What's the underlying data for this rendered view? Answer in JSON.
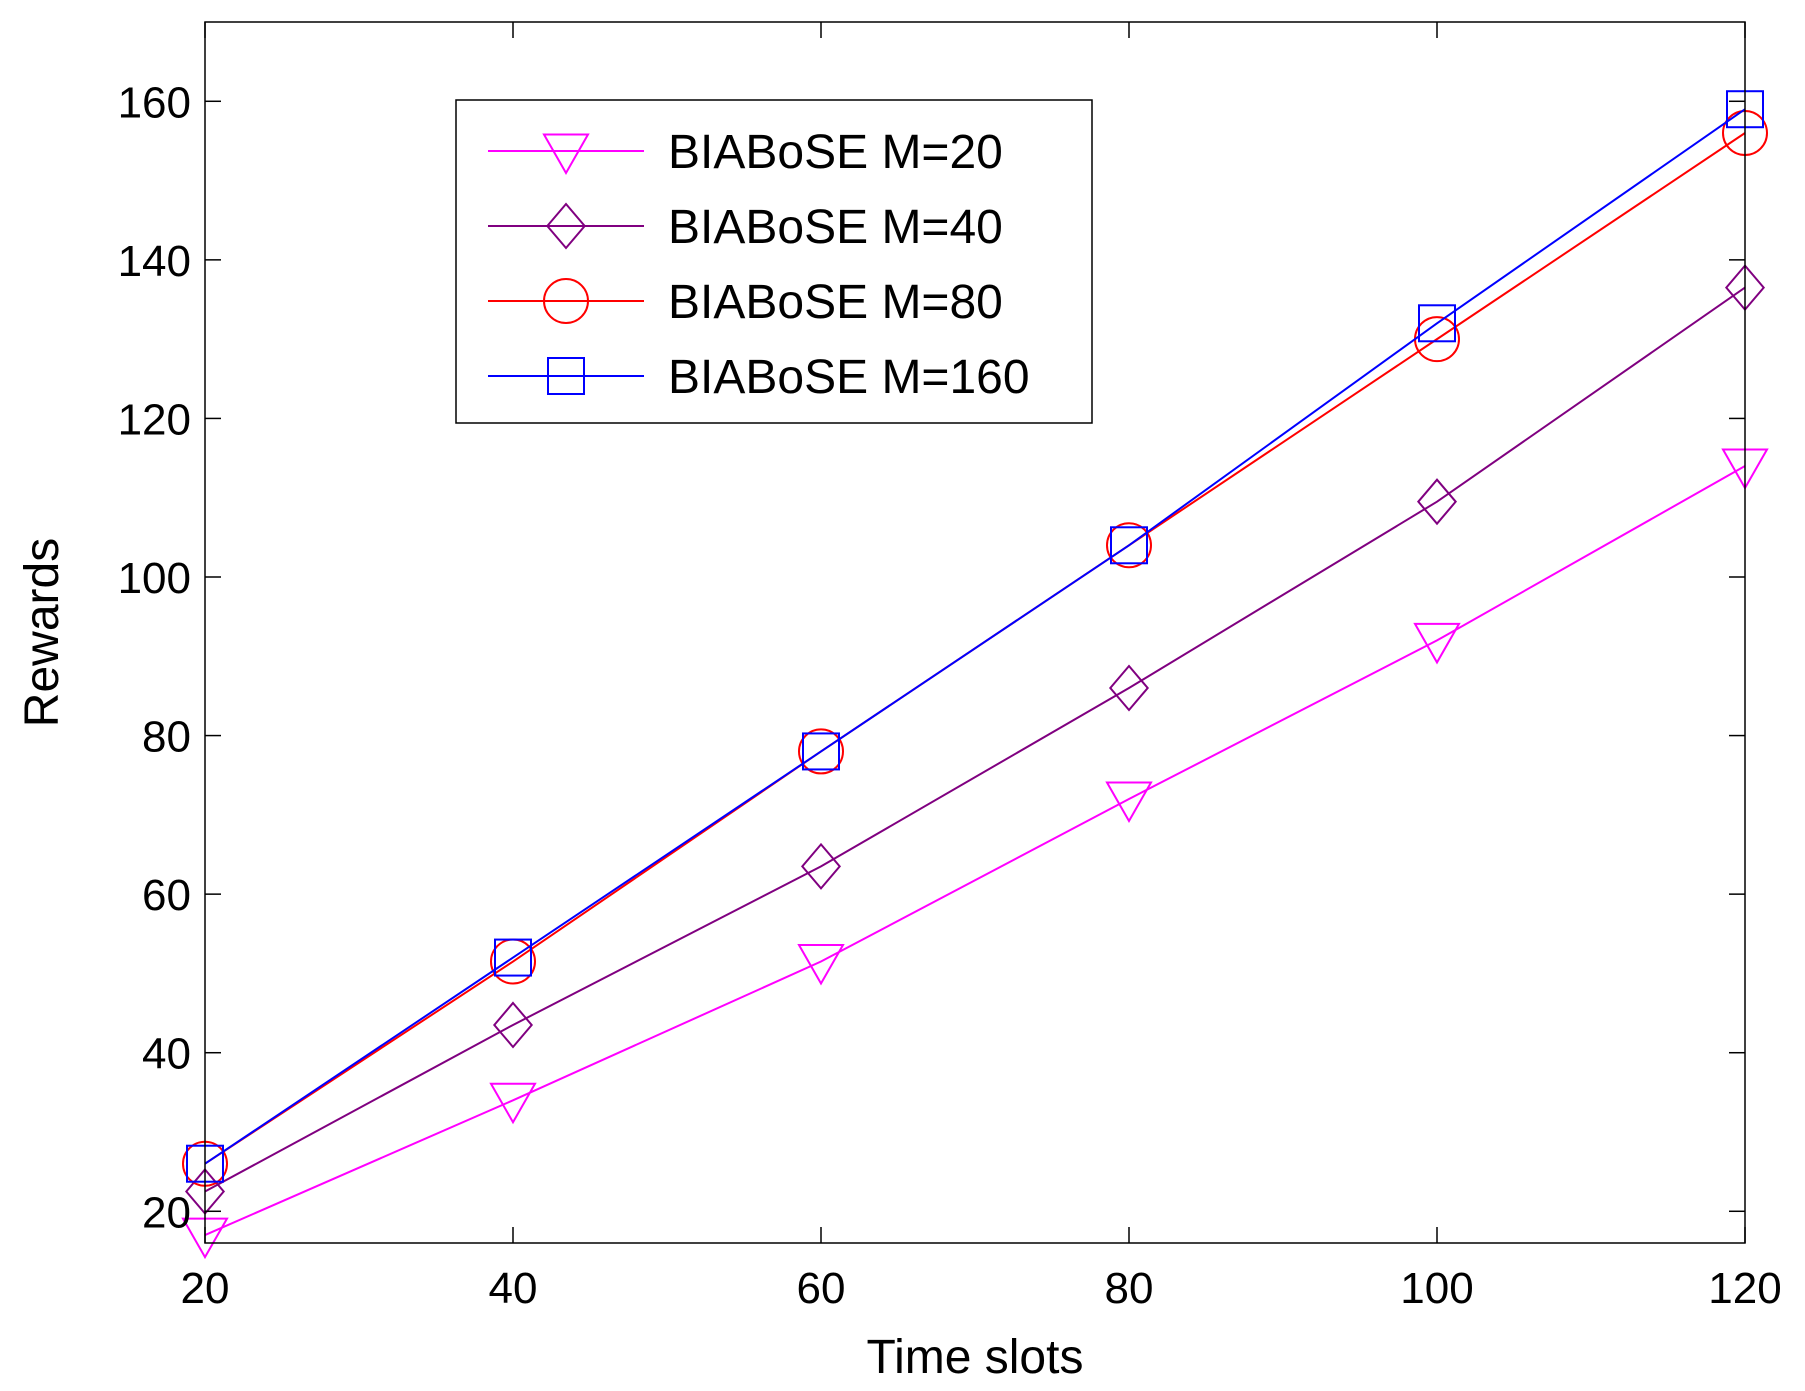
{
  "chart_data": {
    "type": "line",
    "title": "",
    "xlabel": "Time slots",
    "ylabel": "Rewards",
    "x": [
      20,
      40,
      60,
      80,
      100,
      120
    ],
    "xlim": [
      20,
      120
    ],
    "ylim": [
      16,
      170
    ],
    "xticks": [
      "20",
      "40",
      "60",
      "80",
      "100",
      "120"
    ],
    "yticks": [
      "20",
      "40",
      "60",
      "80",
      "100",
      "120",
      "140",
      "160"
    ],
    "grid": false,
    "legend_position": "top-left",
    "series": [
      {
        "name": "BIABoSE M=20",
        "marker": "triangle-down",
        "color": "#ff00ff",
        "values": [
          17,
          34,
          51.5,
          72,
          92,
          114
        ]
      },
      {
        "name": "BIABoSE M=40",
        "marker": "diamond",
        "color": "#800080",
        "values": [
          22.5,
          43.5,
          63.5,
          86,
          109.5,
          136.5
        ]
      },
      {
        "name": "BIABoSE M=80",
        "marker": "circle",
        "color": "#ff0000",
        "values": [
          26,
          51.5,
          78,
          104,
          130,
          156
        ]
      },
      {
        "name": "BIABoSE M=160",
        "marker": "square",
        "color": "#0000ff",
        "values": [
          26,
          52,
          78,
          104,
          132,
          159
        ]
      }
    ]
  }
}
